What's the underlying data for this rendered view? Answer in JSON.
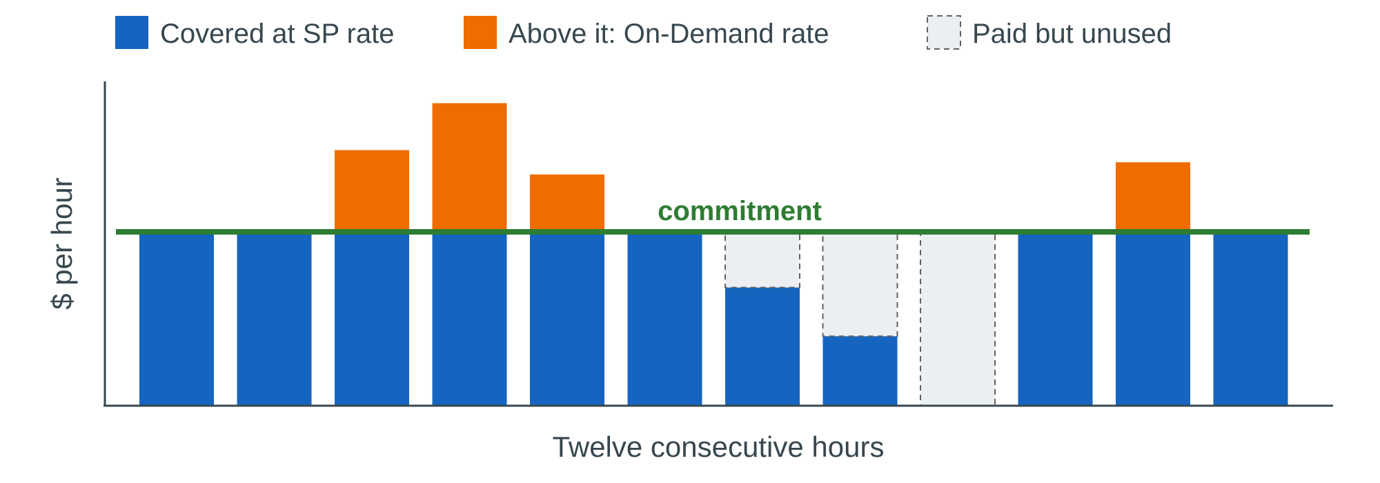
{
  "chart_data": {
    "type": "bar",
    "stacked": true,
    "title": "",
    "xlabel": "Twelve consecutive hours",
    "ylabel": "$ per hour",
    "x_tick_labels": "none",
    "y_tick_labels": "none",
    "grid": false,
    "legend_position": "top",
    "ylim": [
      0,
      1.9
    ],
    "commitment": {
      "label": "commitment",
      "value": 1.0,
      "color": "#2e7d32"
    },
    "hours": [
      1,
      2,
      3,
      4,
      5,
      6,
      7,
      8,
      9,
      10,
      11,
      12
    ],
    "series": [
      {
        "name": "Covered at SP rate",
        "color": "#1565c0",
        "style": "solid",
        "values": [
          1.0,
          1.0,
          1.0,
          1.0,
          1.0,
          1.0,
          0.68,
          0.4,
          0.0,
          1.0,
          1.0,
          1.0
        ]
      },
      {
        "name": "Above it: On-Demand rate",
        "color": "#ef6c00",
        "style": "solid",
        "values": [
          0.0,
          0.0,
          0.47,
          0.74,
          0.33,
          0.0,
          0.0,
          0.0,
          0.0,
          0.0,
          0.4,
          0.0
        ]
      },
      {
        "name": "Paid but unused",
        "color": "#eceff1",
        "border": "#616161",
        "style": "dashed",
        "values": [
          0.0,
          0.0,
          0.0,
          0.0,
          0.0,
          0.0,
          0.32,
          0.6,
          1.0,
          0.0,
          0.0,
          0.0
        ]
      }
    ]
  }
}
